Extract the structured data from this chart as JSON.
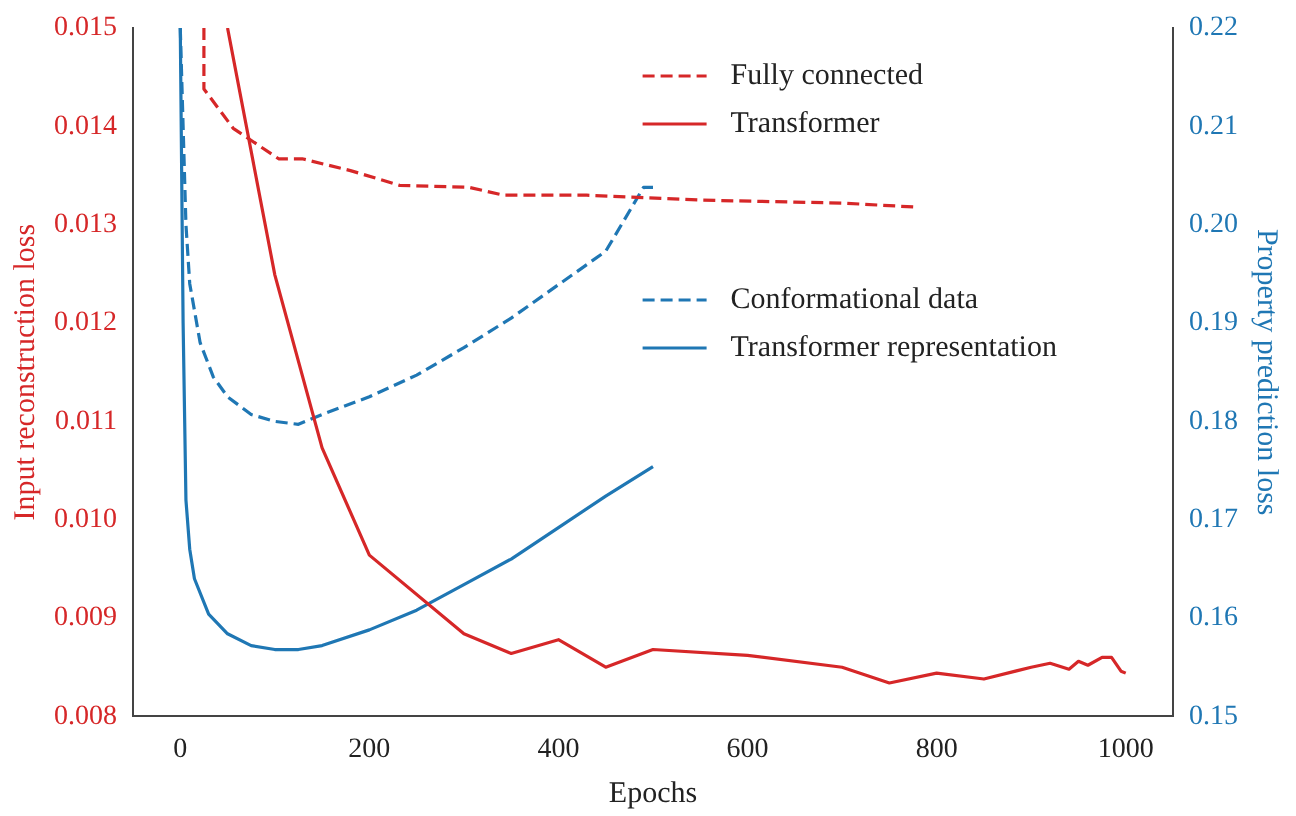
{
  "chart_data": {
    "type": "line",
    "xlabel": "Epochs",
    "ylabel": "Input reconstruction loss",
    "y2label": "Property prediction loss",
    "xlim": [
      -50,
      1050
    ],
    "xticks": [
      0,
      200,
      400,
      600,
      800,
      1000
    ],
    "ylim": [
      0.008,
      0.015
    ],
    "yticks": [
      0.008,
      0.009,
      {
        "value": 0.01,
        "label": "0.010"
      },
      0.011,
      0.012,
      0.013,
      0.014,
      0.015
    ],
    "y2lim": [
      0.15,
      0.22
    ],
    "y2ticks": [
      0.15,
      0.16,
      0.17,
      0.18,
      0.19,
      {
        "value": 0.2,
        "label": "0.20"
      },
      0.21,
      0.22
    ],
    "grid": false,
    "legend": "top right",
    "marker": "none",
    "series": [
      {
        "name": "Fully connected",
        "color": "#d62728",
        "axis": "y",
        "line_style": "dashed",
        "x": [
          25,
          25,
          56,
          104,
          129,
          180,
          232,
          305,
          342,
          430,
          550,
          650,
          700,
          776
        ],
        "values": [
          0.015,
          0.01438,
          0.01398,
          0.01367,
          0.01367,
          0.01355,
          0.0134,
          0.01338,
          0.0133,
          0.0133,
          0.01325,
          0.01323,
          0.01322,
          0.01318
        ]
      },
      {
        "name": "Transformer",
        "color": "#d62728",
        "axis": "y",
        "line_style": "solid",
        "x": [
          50,
          100,
          150,
          200,
          300,
          350,
          400,
          450,
          500,
          600,
          700,
          750,
          800,
          850,
          900,
          920,
          940,
          950,
          960,
          975,
          985,
          995,
          1000
        ],
        "values": [
          0.015,
          0.01249,
          0.01073,
          0.00964,
          0.00884,
          0.00864,
          0.00878,
          0.0085,
          0.00868,
          0.00862,
          0.0085,
          0.00834,
          0.00844,
          0.00838,
          0.0085,
          0.00854,
          0.00848,
          0.00856,
          0.00852,
          0.0086,
          0.0086,
          0.00846,
          0.00844
        ]
      },
      {
        "name": "Conformational data",
        "color": "#1f77b4",
        "axis": "y2",
        "line_style": "dashed",
        "x": [
          0,
          3,
          6,
          10,
          21,
          35,
          50,
          75,
          100,
          125,
          150,
          200,
          250,
          300,
          350,
          400,
          450,
          490,
          500
        ],
        "values": [
          0.22,
          0.21,
          0.2,
          0.194,
          0.188,
          0.1845,
          0.1825,
          0.1807,
          0.18,
          0.1797,
          0.1807,
          0.1825,
          0.1847,
          0.1875,
          0.1905,
          0.1939,
          0.1973,
          0.2038,
          0.2038
        ]
      },
      {
        "name": "Transformer representation",
        "color": "#1f77b4",
        "axis": "y2",
        "line_style": "solid",
        "x": [
          0,
          3,
          6,
          10,
          15,
          30,
          50,
          75,
          100,
          125,
          150,
          200,
          250,
          300,
          350,
          400,
          450,
          500
        ],
        "values": [
          0.22,
          0.19,
          0.172,
          0.167,
          0.164,
          0.1604,
          0.1584,
          0.1572,
          0.1568,
          0.1568,
          0.1572,
          0.1588,
          0.1608,
          0.1634,
          0.166,
          0.1692,
          0.1724,
          0.1754
        ]
      }
    ]
  }
}
